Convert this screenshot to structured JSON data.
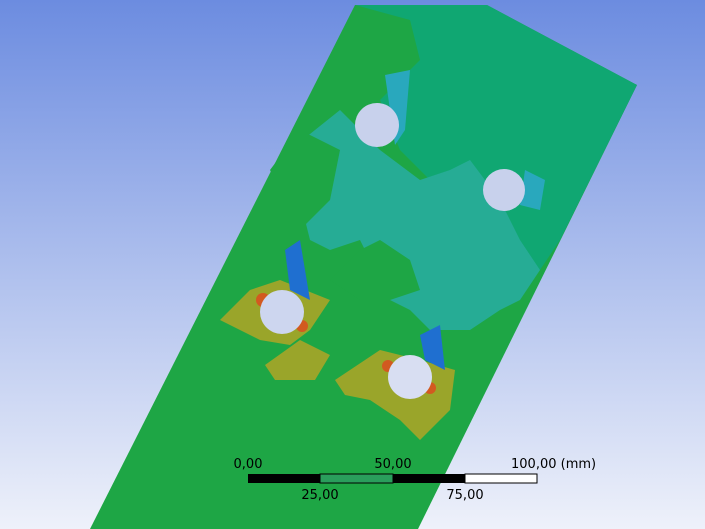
{
  "scale_bar": {
    "labels_top": [
      "0,00",
      "50,00",
      "100,00 (mm)"
    ],
    "labels_bottom": [
      "25,00",
      "75,00"
    ]
  }
}
